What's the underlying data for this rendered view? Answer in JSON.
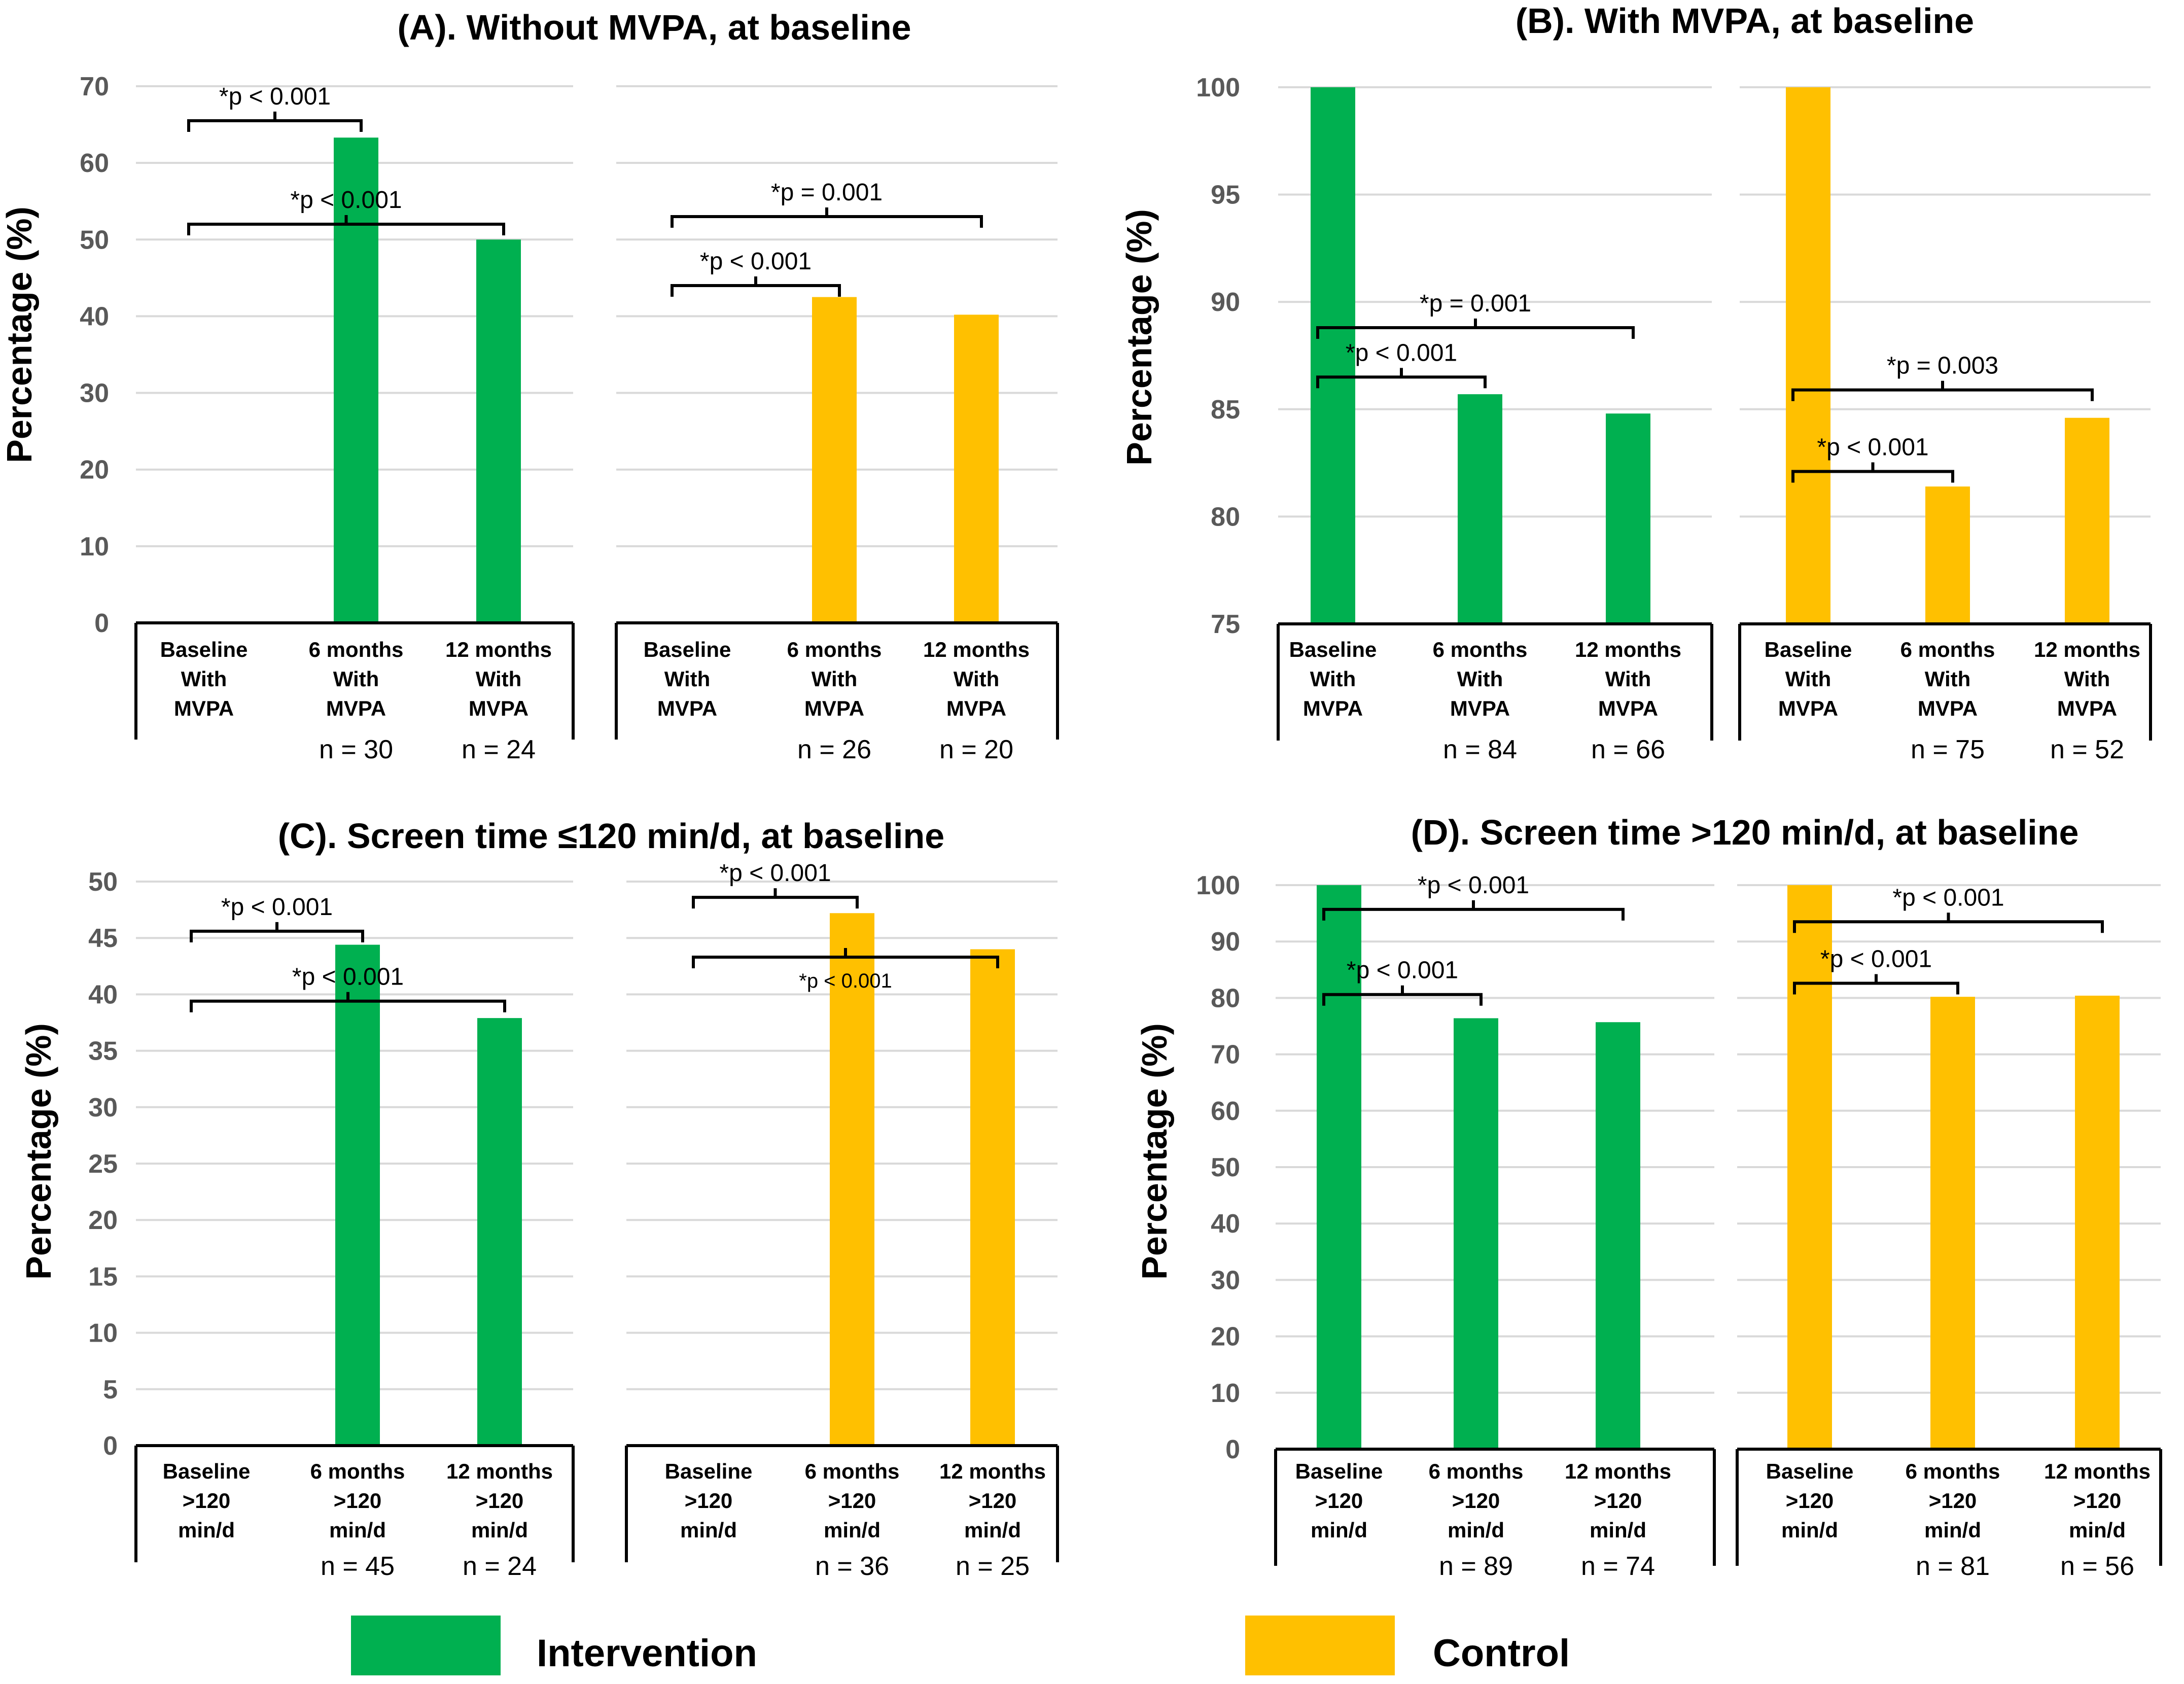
{
  "colors": {
    "intervention": "#00b050",
    "control": "#ffc000"
  },
  "legend": [
    {
      "label": "Intervention",
      "color": "#00b050"
    },
    {
      "label": "Control",
      "color": "#ffc000"
    }
  ],
  "chart_data": [
    {
      "type": "bar",
      "title": "(A). Without MVPA, at baseline",
      "ylabel": "Percentage (%)",
      "ylim": [
        0,
        70
      ],
      "yticks": [
        0,
        10,
        20,
        30,
        40,
        50,
        60,
        70
      ],
      "groups": [
        {
          "name": "Intervention",
          "categories": [
            "Baseline\nWith\nMVPA",
            "6 months\nWith\nMVPA",
            "12 months\nWith\nMVPA"
          ],
          "values": [
            0,
            63.3,
            50.0
          ],
          "n_labels": [
            "",
            "n = 30",
            "n = 24"
          ],
          "annotations": [
            {
              "from": 0,
              "to": 1,
              "text": "*p < 0.001",
              "y": 65.5
            },
            {
              "from": 0,
              "to": 2,
              "text": "*p < 0.001",
              "y": 52
            }
          ]
        },
        {
          "name": "Control",
          "categories": [
            "Baseline\nWith\nMVPA",
            "6 months\nWith\nMVPA",
            "12 months\nWith\nMVPA"
          ],
          "values": [
            0,
            42.5,
            40.2
          ],
          "n_labels": [
            "",
            "n = 26",
            "n = 20"
          ],
          "annotations": [
            {
              "from": 0,
              "to": 1,
              "text": "*p < 0.001",
              "y": 44
            },
            {
              "from": 0,
              "to": 2,
              "text": "*p = 0.001",
              "y": 53
            }
          ]
        }
      ]
    },
    {
      "type": "bar",
      "title": "(B). With MVPA, at baseline",
      "ylabel": "Percentage (%)",
      "ylim": [
        75,
        100
      ],
      "yticks": [
        75,
        80,
        85,
        90,
        95,
        100
      ],
      "groups": [
        {
          "name": "Intervention",
          "categories": [
            "Baseline\nWith\nMVPA",
            "6 months\nWith\nMVPA",
            "12 months\nWith\nMVPA"
          ],
          "values": [
            100,
            85.7,
            84.8
          ],
          "n_labels": [
            "",
            "n = 84",
            "n = 66"
          ],
          "annotations": [
            {
              "from": 0,
              "to": 1,
              "text": "*p < 0.001",
              "y": 86.5
            },
            {
              "from": 0,
              "to": 2,
              "text": "*p = 0.001",
              "y": 88.8
            }
          ]
        },
        {
          "name": "Control",
          "categories": [
            "Baseline\nWith\nMVPA",
            "6 months\nWith\nMVPA",
            "12 months\nWith\nMVPA"
          ],
          "values": [
            100,
            81.4,
            84.6
          ],
          "n_labels": [
            "",
            "n = 75",
            "n = 52"
          ],
          "annotations": [
            {
              "from": 0,
              "to": 1,
              "text": "*p < 0.001",
              "y": 82.1
            },
            {
              "from": 0,
              "to": 2,
              "text": "*p = 0.003",
              "y": 85.9
            }
          ]
        }
      ]
    },
    {
      "type": "bar",
      "title": "(C). Screen time ≤120 min/d, at baseline",
      "ylabel": "Percentage (%)",
      "ylim": [
        0,
        50
      ],
      "yticks": [
        0,
        5,
        10,
        15,
        20,
        25,
        30,
        35,
        40,
        45,
        50
      ],
      "groups": [
        {
          "name": "Intervention",
          "categories": [
            "Baseline\n>120\nmin/d",
            "6 months\n>120\nmin/d",
            "12 months\n>120\nmin/d"
          ],
          "values": [
            0,
            44.4,
            37.9
          ],
          "n_labels": [
            "",
            "n = 45",
            "n = 24"
          ],
          "annotations": [
            {
              "from": 0,
              "to": 1,
              "text": "*p < 0.001",
              "y": 45.6
            },
            {
              "from": 0,
              "to": 2,
              "text": "*p < 0.001",
              "y": 39.4
            }
          ]
        },
        {
          "name": "Control",
          "categories": [
            "Baseline\n>120\nmin/d",
            "6 months\n>120\nmin/d",
            "12 months\n>120\nmin/d"
          ],
          "values": [
            0,
            47.2,
            44.0
          ],
          "n_labels": [
            "",
            "n = 36",
            "n = 25"
          ],
          "annotations": [
            {
              "from": 0,
              "to": 1,
              "text": "*p < 0.001",
              "y": 48.6
            },
            {
              "from": 0,
              "to": 2,
              "text": "*p < 0.001",
              "y": 43.3,
              "label_below": true
            }
          ]
        }
      ]
    },
    {
      "type": "bar",
      "title": "(D). Screen time >120 min/d, at baseline",
      "ylabel": "Percentage (%)",
      "ylim": [
        0,
        100
      ],
      "yticks": [
        0,
        10,
        20,
        30,
        40,
        50,
        60,
        70,
        80,
        90,
        100
      ],
      "groups": [
        {
          "name": "Intervention",
          "categories": [
            "Baseline\n>120\nmin/d",
            "6 months\n>120\nmin/d",
            "12 months\n>120\nmin/d"
          ],
          "values": [
            100,
            76.4,
            75.7
          ],
          "n_labels": [
            "",
            "n = 89",
            "n = 74"
          ],
          "annotations": [
            {
              "from": 0,
              "to": 1,
              "text": "*p < 0.001",
              "y": 80.6
            },
            {
              "from": 0,
              "to": 2,
              "text": "*p < 0.001",
              "y": 95.7
            }
          ]
        },
        {
          "name": "Control",
          "categories": [
            "Baseline\n>120\nmin/d",
            "6 months\n>120\nmin/d",
            "12 months\n>120\nmin/d"
          ],
          "values": [
            100,
            80.2,
            80.4
          ],
          "n_labels": [
            "",
            "n = 81",
            "n = 56"
          ],
          "annotations": [
            {
              "from": 0,
              "to": 1,
              "text": "*p < 0.001",
              "y": 82.6
            },
            {
              "from": 0,
              "to": 2,
              "text": "*p < 0.001",
              "y": 93.5
            }
          ]
        }
      ]
    }
  ]
}
